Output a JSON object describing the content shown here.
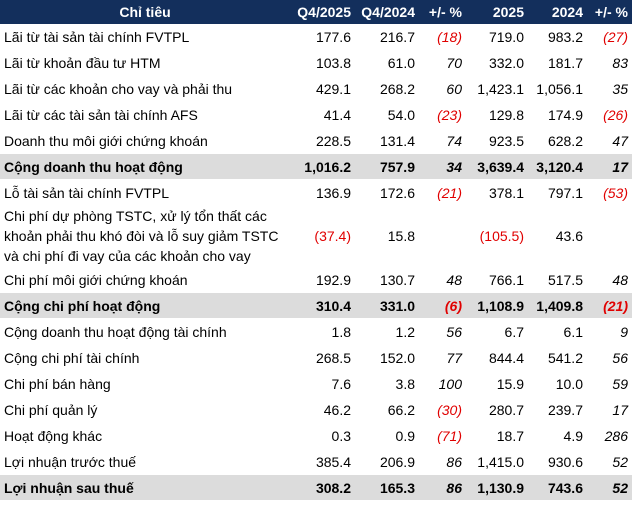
{
  "table": {
    "header": [
      "Chỉ tiêu",
      "Q4/2025",
      "Q4/2024",
      "+/- %",
      "2025",
      "2024",
      "+/- %"
    ],
    "total_rows": [
      5,
      9,
      16
    ],
    "rows": [
      [
        "Lãi từ tài sản tài chính FVTPL",
        "177.6",
        "216.7",
        "(18)",
        "719.0",
        "983.2",
        "(27)"
      ],
      [
        "Lãi từ khoản đầu tư HTM",
        "103.8",
        "61.0",
        "70",
        "332.0",
        "181.7",
        "83"
      ],
      [
        "Lãi từ các khoản cho vay và phải thu",
        "429.1",
        "268.2",
        "60",
        "1,423.1",
        "1,056.1",
        "35"
      ],
      [
        "Lãi từ các tài sản tài chính AFS",
        "41.4",
        "54.0",
        "(23)",
        "129.8",
        "174.9",
        "(26)"
      ],
      [
        "Doanh thu môi giới chứng khoán",
        "228.5",
        "131.4",
        "74",
        "923.5",
        "628.2",
        "47"
      ],
      [
        "Cộng doanh thu hoạt động",
        "1,016.2",
        "757.9",
        "34",
        "3,639.4",
        "3,120.4",
        "17"
      ],
      [
        "Lỗ tài sản tài chính FVTPL",
        "136.9",
        "172.6",
        "(21)",
        "378.1",
        "797.1",
        "(53)"
      ],
      [
        "Chi phí dự phòng TSTC, xử lý tổn thất các khoản phải thu khó đòi và lỗ suy giảm TSTC và chi phí đi vay của các khoản cho vay",
        "(37.4)",
        "15.8",
        null,
        "(105.5)",
        "43.6",
        null
      ],
      [
        "Chi phí môi giới chứng khoán",
        "192.9",
        "130.7",
        "48",
        "766.1",
        "517.5",
        "48"
      ],
      [
        "Cộng chi phí hoạt động",
        "310.4",
        "331.0",
        "(6)",
        "1,108.9",
        "1,409.8",
        "(21)"
      ],
      [
        "Cộng doanh thu hoạt động tài chính",
        "1.8",
        "1.2",
        "56",
        "6.7",
        "6.1",
        "9"
      ],
      [
        "Cộng chi phí tài chính",
        "268.5",
        "152.0",
        "77",
        "844.4",
        "541.2",
        "56"
      ],
      [
        "Chi phí bán hàng",
        "7.6",
        "3.8",
        "100",
        "15.9",
        "10.0",
        "59"
      ],
      [
        "Chi phí quản lý",
        "46.2",
        "66.2",
        "(30)",
        "280.7",
        "239.7",
        "17"
      ],
      [
        "Hoạt động khác",
        "0.3",
        "0.9",
        "(71)",
        "18.7",
        "4.9",
        "286"
      ],
      [
        "Lợi nhuận trước thuế",
        "385.4",
        "206.9",
        "86",
        "1,415.0",
        "930.6",
        "52"
      ],
      [
        "Lợi nhuận sau thuế",
        "308.2",
        "165.3",
        "86",
        "1,130.9",
        "743.6",
        "52"
      ]
    ]
  }
}
